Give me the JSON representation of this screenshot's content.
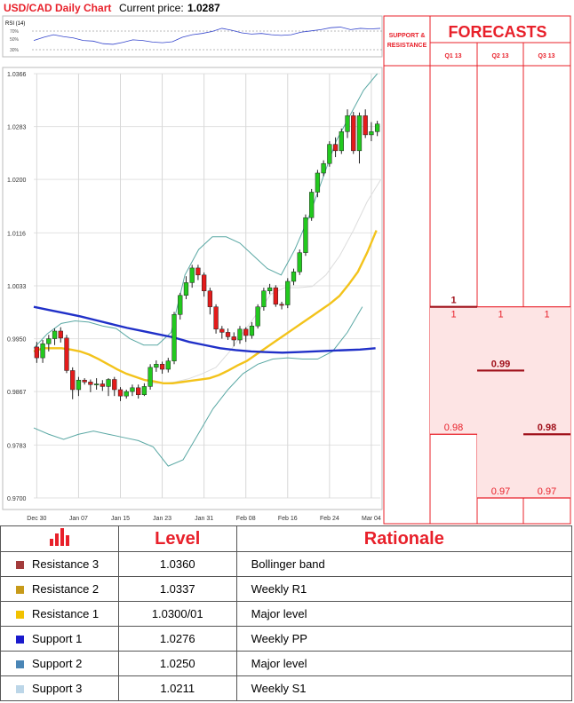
{
  "header": {
    "title": "USD/CAD Daily Chart",
    "price_label": "Current price:",
    "price": "1.0287"
  },
  "rsi": {
    "label": "RSI (14)",
    "ticks": [
      "70%",
      "50%",
      "30%"
    ]
  },
  "colors": {
    "resistance3": "#6a0a1c",
    "resistance2": "#dcb36a",
    "resistance1": "#f2c200",
    "support1": "#1a1aa8",
    "support2": "#4a86b6",
    "support3": "#a8d4cc",
    "bull": "#22c91e",
    "bear": "#e41b1b",
    "ma_fast": "#f3c31b",
    "ma_slow": "#2030c8",
    "band": "#5aa8a4",
    "accent": "#e8202a",
    "forecast_fill": "#fde4e4"
  },
  "chart_data": {
    "type": "candlestick",
    "title": "USD/CAD Daily Chart",
    "ylim": [
      0.97,
      1.0366
    ],
    "y_ticks": [
      "1.0366",
      "1.0283",
      "1.0200",
      "1.0116",
      "1.0033",
      "0.9950",
      "0.9867",
      "0.9783",
      "0.9700"
    ],
    "x_ticks": [
      "Dec 30",
      "Jan 07",
      "Jan 15",
      "Jan 23",
      "Jan 31",
      "Feb 08",
      "Feb 16",
      "Feb 24",
      "Mar 04"
    ],
    "candles": [
      [
        0.9937,
        0.992,
        0.9945,
        0.9912
      ],
      [
        0.992,
        0.9942,
        0.9948,
        0.9912
      ],
      [
        0.9942,
        0.995,
        0.9956,
        0.993
      ],
      [
        0.995,
        0.9962,
        0.9966,
        0.994
      ],
      [
        0.9962,
        0.9951,
        0.9968,
        0.9944
      ],
      [
        0.9951,
        0.99,
        0.9956,
        0.9896
      ],
      [
        0.99,
        0.987,
        0.9905,
        0.9855
      ],
      [
        0.987,
        0.9885,
        0.989,
        0.986
      ],
      [
        0.9885,
        0.9882,
        0.9888,
        0.9878
      ],
      [
        0.9882,
        0.9878,
        0.9886,
        0.9866
      ],
      [
        0.9878,
        0.9879,
        0.9888,
        0.987
      ],
      [
        0.9879,
        0.9875,
        0.9885,
        0.9868
      ],
      [
        0.9875,
        0.9886,
        0.9888,
        0.986
      ],
      [
        0.9886,
        0.987,
        0.989,
        0.986
      ],
      [
        0.987,
        0.986,
        0.9874,
        0.9852
      ],
      [
        0.986,
        0.9867,
        0.987,
        0.9856
      ],
      [
        0.9867,
        0.9873,
        0.9878,
        0.986
      ],
      [
        0.9873,
        0.9862,
        0.9878,
        0.9856
      ],
      [
        0.9862,
        0.9875,
        0.988,
        0.986
      ],
      [
        0.9875,
        0.9905,
        0.991,
        0.987
      ],
      [
        0.9905,
        0.991,
        0.9916,
        0.9898
      ],
      [
        0.991,
        0.9902,
        0.9914,
        0.9895
      ],
      [
        0.9902,
        0.9915,
        0.992,
        0.9897
      ],
      [
        0.9915,
        0.9988,
        0.9992,
        0.991
      ],
      [
        0.9988,
        1.0018,
        1.0022,
        0.998
      ],
      [
        1.0018,
        1.0038,
        1.0048,
        1.0012
      ],
      [
        1.0038,
        1.0061,
        1.0066,
        1.003
      ],
      [
        1.0061,
        1.005,
        1.0066,
        1.0042
      ],
      [
        1.005,
        1.0025,
        1.0054,
        1.0016
      ],
      [
        1.0025,
        1.0,
        1.003,
        0.9988
      ],
      [
        1.0,
        0.9965,
        1.0004,
        0.9958
      ],
      [
        0.9965,
        0.996,
        0.997,
        0.995
      ],
      [
        0.996,
        0.9953,
        0.9966,
        0.9948
      ],
      [
        0.9953,
        0.9948,
        0.996,
        0.9938
      ],
      [
        0.9948,
        0.9965,
        0.997,
        0.9942
      ],
      [
        0.9965,
        0.9955,
        0.9968,
        0.9945
      ],
      [
        0.9955,
        0.997,
        0.9976,
        0.995
      ],
      [
        0.997,
        1.0,
        1.0004,
        0.9966
      ],
      [
        1.0,
        1.0025,
        1.003,
        0.9994
      ],
      [
        1.0025,
        1.003,
        1.0036,
        1.002
      ],
      [
        1.003,
        1.0004,
        1.0034,
        1.0
      ],
      [
        1.0004,
        1.0003,
        1.0008,
        0.9996
      ],
      [
        1.0003,
        1.004,
        1.0045,
        0.9998
      ],
      [
        1.004,
        1.0055,
        1.006,
        1.0034
      ],
      [
        1.0055,
        1.0085,
        1.009,
        1.005
      ],
      [
        1.0085,
        1.014,
        1.0145,
        1.008
      ],
      [
        1.014,
        1.018,
        1.0185,
        1.0135
      ],
      [
        1.018,
        1.021,
        1.0215,
        1.0172
      ],
      [
        1.021,
        1.0225,
        1.023,
        1.0205
      ],
      [
        1.0225,
        1.0255,
        1.026,
        1.022
      ],
      [
        1.0255,
        1.0245,
        1.0266,
        1.0235
      ],
      [
        1.0245,
        1.0275,
        1.028,
        1.024
      ],
      [
        1.0275,
        1.03,
        1.031,
        1.0265
      ],
      [
        1.03,
        1.0245,
        1.0306,
        1.024
      ],
      [
        1.0245,
        1.03,
        1.0305,
        1.0225
      ],
      [
        1.03,
        1.027,
        1.031,
        1.0265
      ],
      [
        1.027,
        1.0275,
        1.029,
        1.026
      ],
      [
        1.0275,
        1.0287,
        1.0292,
        1.0268
      ]
    ],
    "ma_fast": [
      0.993,
      0.9935,
      0.9935,
      0.9935,
      0.9933,
      0.993,
      0.9925,
      0.9918,
      0.991,
      0.9902,
      0.9895,
      0.989,
      0.9885,
      0.9883,
      0.988,
      0.988,
      0.9882,
      0.9884,
      0.9886,
      0.9888,
      0.9893,
      0.99,
      0.9908,
      0.9915,
      0.9925,
      0.9935,
      0.9945,
      0.9955,
      0.9965,
      0.9975,
      0.9985,
      0.9995,
      1.0005,
      1.0017,
      1.0035,
      1.0055,
      1.0085,
      1.012
    ],
    "ma_slow": [
      1.0,
      0.9995,
      0.999,
      0.9985,
      0.9979,
      0.9973,
      0.9967,
      0.9962,
      0.9957,
      0.9952,
      0.9945,
      0.994,
      0.9935,
      0.9932,
      0.993,
      0.9929,
      0.9928,
      0.9929,
      0.993,
      0.9931,
      0.9932,
      0.9933,
      0.9935
    ],
    "band_upper": [
      0.9935,
      0.9958,
      0.9974,
      0.9978,
      0.9976,
      0.997,
      0.9966,
      0.995,
      0.994,
      0.994,
      0.996,
      1.005,
      1.009,
      1.011,
      1.011,
      1.01,
      1.008,
      1.006,
      1.005,
      1.009,
      1.014,
      1.02,
      1.026,
      1.03,
      1.034,
      1.0366
    ],
    "band_lower": [
      0.981,
      0.98,
      0.9792,
      0.98,
      0.9805,
      0.98,
      0.9795,
      0.979,
      0.978,
      0.975,
      0.976,
      0.98,
      0.984,
      0.987,
      0.9895,
      0.991,
      0.9918,
      0.992,
      0.9918,
      0.9918,
      0.993,
      0.996,
      1.0
    ],
    "band_mid": [
      0.988,
      0.988,
      0.9882,
      0.9887,
      0.9895,
      0.9905,
      0.993,
      0.996,
      0.999,
      1.002,
      1.003,
      1.003,
      1.0032,
      1.005,
      1.008,
      1.012,
      1.0165,
      1.02
    ],
    "levels": [
      {
        "name": "Resistance 3",
        "value": "1.0360",
        "rationale": "Bollinger band",
        "color": "#6a0a1c"
      },
      {
        "name": "Resistance 2",
        "value": "1.0337",
        "rationale": "Weekly R1",
        "color": "#dcb36a"
      },
      {
        "name": "Resistance 1",
        "value": "1.0300",
        "table_value": "1.0300/01",
        "rationale": "Major level",
        "color": "#f2c200"
      },
      {
        "name": "Support 1",
        "value": "1.0276",
        "rationale": "Weekly PP",
        "color": "#1a1aa8"
      },
      {
        "name": "Support 2",
        "value": "1.0250",
        "rationale": "Major level",
        "color": "#4a86b6"
      },
      {
        "name": "Support 3",
        "value": "1.0211",
        "rationale": "Weekly S1",
        "color": "#a8d4cc"
      }
    ],
    "rsi_values": [
      0.4,
      0.5,
      0.58,
      0.52,
      0.48,
      0.4,
      0.38,
      0.3,
      0.28,
      0.34,
      0.42,
      0.4,
      0.35,
      0.33,
      0.36,
      0.5,
      0.58,
      0.62,
      0.68,
      0.78,
      0.72,
      0.64,
      0.6,
      0.62,
      0.58,
      0.56,
      0.58,
      0.66,
      0.7,
      0.74,
      0.8,
      0.82,
      0.74,
      0.78,
      0.76,
      0.78
    ]
  },
  "forecasts": {
    "title": "FORECASTS",
    "sr_label": [
      "SUPPORT &",
      "RESISTANCE"
    ],
    "columns": [
      {
        "label": "Q1 13",
        "top": 1,
        "bottom": 0.98,
        "top_label": "1",
        "bottom_label": "0.98"
      },
      {
        "label": "Q2 13",
        "top": 1,
        "bottom": 0.97,
        "top_label": "1",
        "bottom_label": "0.97"
      },
      {
        "label": "Q3 13",
        "top": 1,
        "bottom": 0.97,
        "top_label": "1",
        "bottom_label": "0.97"
      }
    ],
    "markers": [
      {
        "col": 0,
        "value": 1,
        "label": "1"
      },
      {
        "col": 1,
        "value": 0.99,
        "label": "0.99"
      },
      {
        "col": 2,
        "value": 0.98,
        "label": "0.98"
      }
    ]
  },
  "table": {
    "headers": [
      "",
      "Level",
      "Rationale"
    ]
  }
}
